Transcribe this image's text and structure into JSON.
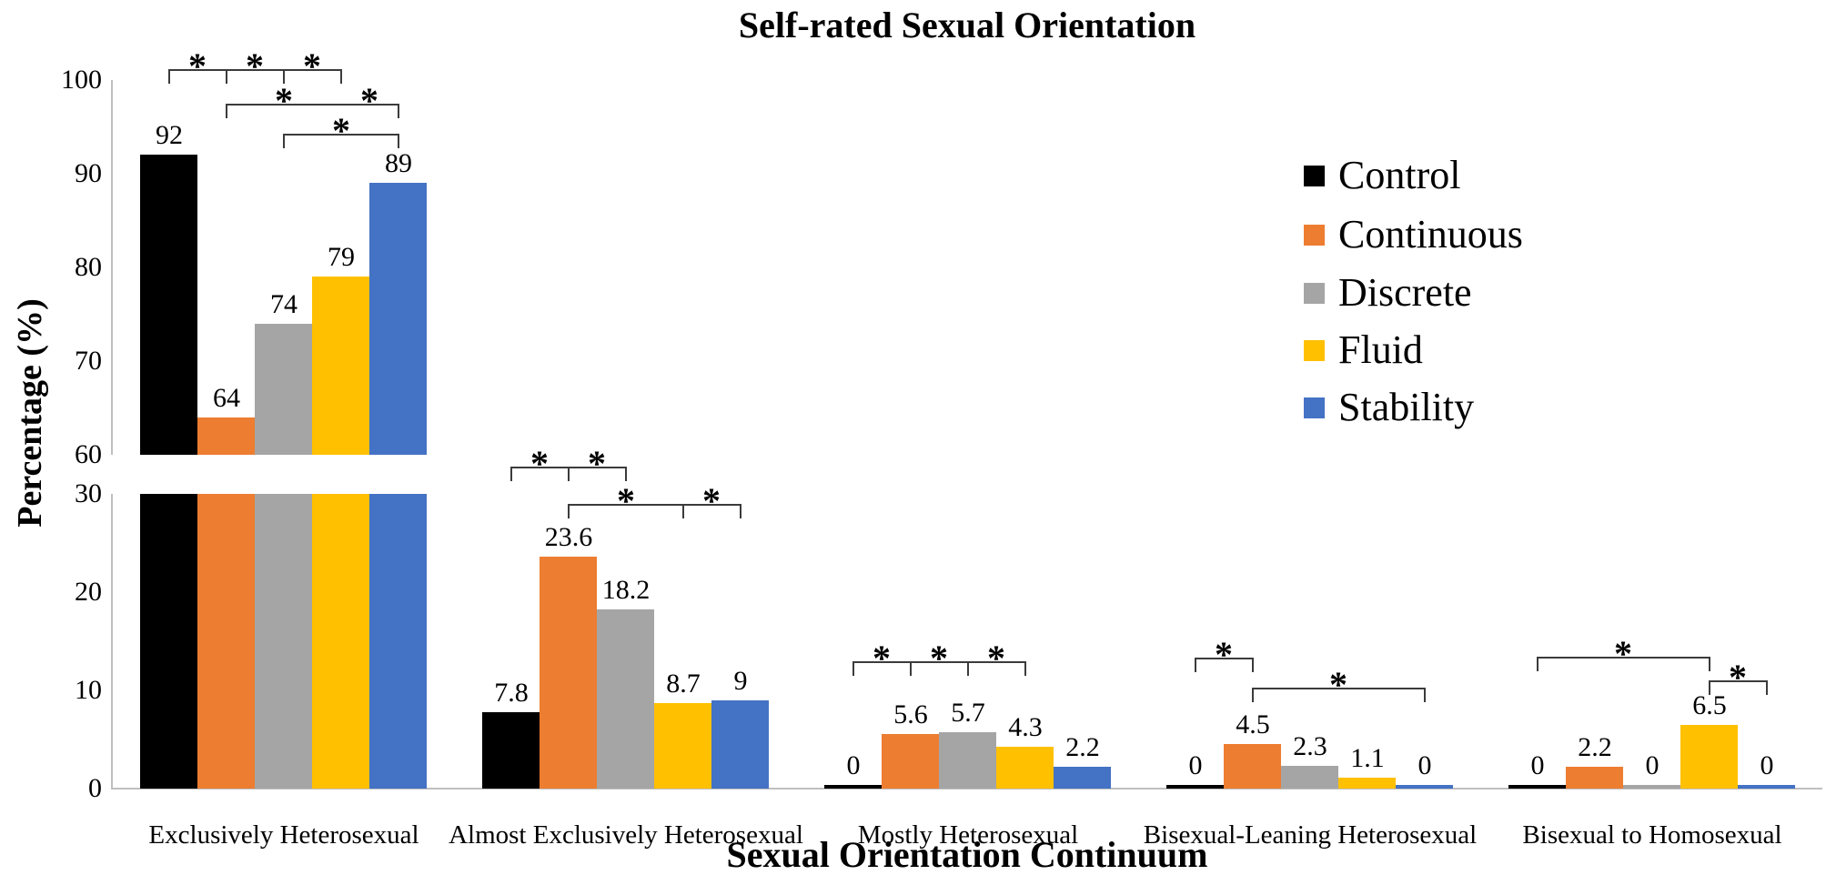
{
  "title": "Self-rated Sexual Orientation",
  "x_axis": {
    "title": "Sexual Orientation Continuum"
  },
  "y_axis": {
    "title": "Percentage (%)"
  },
  "chart_data": {
    "type": "bar",
    "title": "Self-rated Sexual Orientation",
    "xlabel": "Sexual Orientation Continuum",
    "ylabel": "Percentage (%)",
    "grid": false,
    "legend_position": "upper-right",
    "categories": [
      "Exclusively Heterosexual",
      "Almost Exclusively Heterosexual",
      "Mostly Heterosexual",
      "Bisexual-Leaning Heterosexual",
      "Bisexual to Homosexual"
    ],
    "series": [
      {
        "name": "Control",
        "color": "#000000",
        "values": [
          92,
          7.8,
          0,
          0,
          0
        ]
      },
      {
        "name": "Continuous",
        "color": "#ED7D31",
        "values": [
          64,
          23.6,
          5.6,
          4.5,
          2.2
        ]
      },
      {
        "name": "Discrete",
        "color": "#A5A5A5",
        "values": [
          74,
          18.2,
          5.7,
          2.3,
          0
        ]
      },
      {
        "name": "Fluid",
        "color": "#FFC000",
        "values": [
          79,
          8.7,
          4.3,
          1.1,
          6.5
        ]
      },
      {
        "name": "Stability",
        "color": "#4472C4",
        "values": [
          89,
          9,
          2.2,
          0,
          0
        ]
      }
    ],
    "axis_break": {
      "broken": true,
      "upper_range": [
        60,
        100
      ],
      "upper_ticks": [
        100,
        90,
        80,
        70,
        60
      ],
      "lower_range": [
        0,
        30
      ],
      "lower_ticks": [
        30,
        20,
        10,
        0
      ]
    },
    "sig_marker": "*",
    "significance_brackets": [
      {
        "category": 0,
        "rows": [
          {
            "connects": [
              0,
              1,
              2,
              3
            ],
            "stars_between": [
              [
                0,
                1
              ],
              [
                1,
                2
              ],
              [
                2,
                3
              ]
            ]
          },
          {
            "connects": [
              1,
              4
            ],
            "stars_between": [
              [
                1,
                3
              ],
              [
                3,
                4
              ]
            ]
          },
          {
            "connects": [
              2,
              4
            ],
            "stars_between": [
              [
                2,
                4
              ]
            ]
          }
        ]
      },
      {
        "category": 1,
        "rows": [
          {
            "connects": [
              0,
              1,
              2
            ],
            "stars_between": [
              [
                0,
                1
              ],
              [
                1,
                2
              ]
            ]
          },
          {
            "connects": [
              1,
              3,
              4
            ],
            "stars_between": [
              [
                1,
                3
              ],
              [
                3,
                4
              ]
            ]
          }
        ]
      },
      {
        "category": 2,
        "rows": [
          {
            "connects": [
              0,
              1,
              2,
              3
            ],
            "stars_between": [
              [
                0,
                1
              ],
              [
                1,
                2
              ],
              [
                2,
                3
              ]
            ]
          }
        ]
      },
      {
        "category": 3,
        "rows": [
          {
            "connects": [
              0,
              1
            ],
            "stars_between": [
              [
                0,
                1
              ]
            ]
          },
          {
            "connects": [
              1,
              4
            ],
            "stars_between": [
              [
                1,
                4
              ]
            ]
          }
        ]
      },
      {
        "category": 4,
        "rows": [
          {
            "connects": [
              0,
              3
            ],
            "stars_between": [
              [
                0,
                3
              ]
            ]
          },
          {
            "connects": [
              3,
              4
            ],
            "stars_between": [
              [
                3,
                4
              ]
            ]
          }
        ]
      }
    ]
  }
}
